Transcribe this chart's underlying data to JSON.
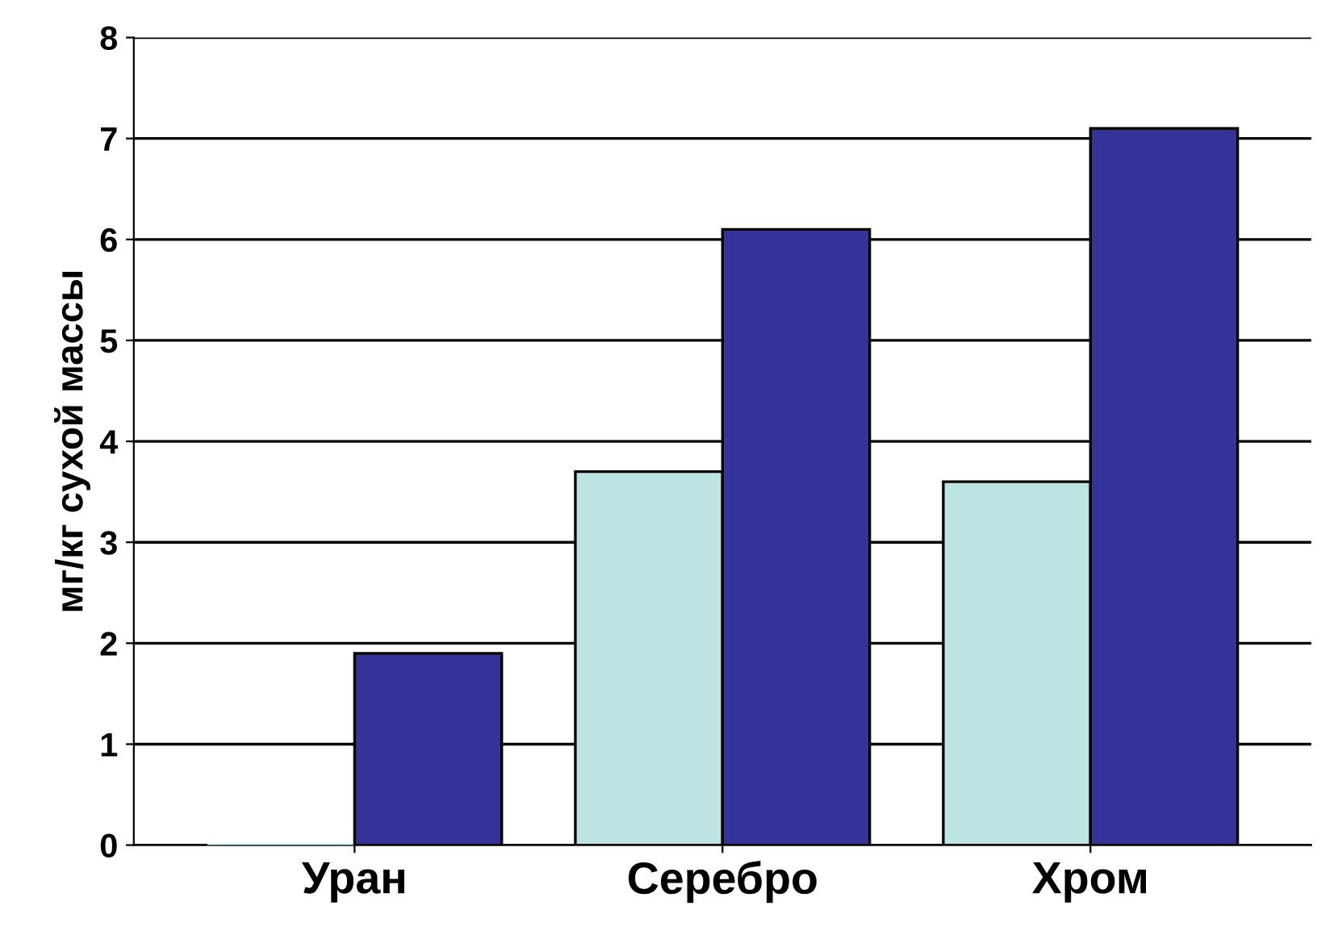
{
  "chart_data": {
    "type": "bar",
    "ylabel": "мг/кг сухой массы",
    "categories": [
      "Уран",
      "Серебро",
      "Хром"
    ],
    "series": [
      {
        "color": "#bde3e3",
        "values": [
          0,
          3.7,
          3.6
        ]
      },
      {
        "color": "#333399",
        "values": [
          1.9,
          6.1,
          7.1
        ]
      }
    ],
    "ylim": [
      0,
      8
    ],
    "yticks": [
      0,
      1,
      2,
      3,
      4,
      5,
      6,
      7,
      8
    ],
    "grid": "y"
  }
}
